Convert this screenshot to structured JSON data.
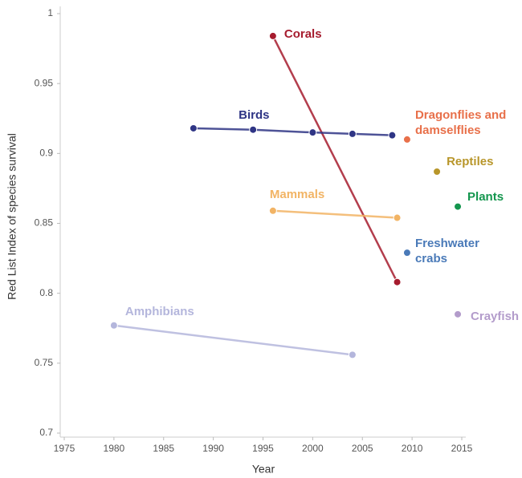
{
  "chart_data": {
    "type": "line",
    "xlabel": "Year",
    "ylabel": "Red List Index of species survival",
    "xlim": [
      1975,
      2015
    ],
    "xticks": [
      1975,
      1980,
      1985,
      1990,
      1995,
      2000,
      2005,
      2010,
      2015
    ],
    "ylim": [
      0.7,
      1
    ],
    "yticks": [
      0.7,
      0.75,
      0.8,
      0.85,
      0.9,
      0.95,
      1
    ],
    "series": [
      {
        "name": "Corals",
        "color": "#a61c2e",
        "x": [
          1996,
          2008.5
        ],
        "values": [
          0.984,
          0.808
        ]
      },
      {
        "name": "Birds",
        "color": "#2f3585",
        "x": [
          1988,
          1994,
          2000,
          2004,
          2008
        ],
        "values": [
          0.918,
          0.917,
          0.915,
          0.914,
          0.913
        ]
      },
      {
        "name": "Dragonflies and damselflies",
        "color": "#e8704a",
        "x": [
          2009.5
        ],
        "values": [
          0.91
        ]
      },
      {
        "name": "Reptiles",
        "color": "#b8962a",
        "x": [
          2012.5
        ],
        "values": [
          0.887
        ]
      },
      {
        "name": "Plants",
        "color": "#14964e",
        "x": [
          2014.6
        ],
        "values": [
          0.862
        ]
      },
      {
        "name": "Mammals",
        "color": "#f2b465",
        "x": [
          1996,
          2008.5
        ],
        "values": [
          0.859,
          0.854
        ]
      },
      {
        "name": "Freshwater crabs",
        "color": "#4a7ab8",
        "x": [
          2009.5
        ],
        "values": [
          0.829
        ]
      },
      {
        "name": "Amphibians",
        "color": "#b4b6dc",
        "x": [
          1980,
          2004
        ],
        "values": [
          0.777,
          0.756
        ]
      },
      {
        "name": "Crayfish",
        "color": "#b39ccb",
        "x": [
          2014.6
        ],
        "values": [
          0.785
        ]
      }
    ]
  }
}
